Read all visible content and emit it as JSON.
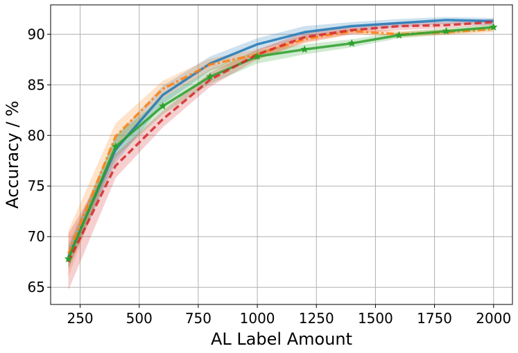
{
  "chart_data": {
    "type": "line",
    "title": "",
    "xlabel": "AL Label Amount",
    "ylabel": "Accuracy / %",
    "xlim": [
      125,
      2080
    ],
    "ylim": [
      63.3,
      92.9
    ],
    "xticks": [
      250,
      500,
      750,
      1000,
      1250,
      1500,
      1750,
      2000
    ],
    "yticks": [
      65,
      70,
      75,
      80,
      85,
      90
    ],
    "grid": true,
    "legend": "none",
    "series": [
      {
        "color": "#1f77b4",
        "linestyle": "solid",
        "marker": "none",
        "x": [
          200,
          400,
          600,
          800,
          1000,
          1200,
          1400,
          1600,
          1800,
          2000
        ],
        "y": [
          68.0,
          78.6,
          84.0,
          87.1,
          89.0,
          90.2,
          90.8,
          91.1,
          91.4,
          91.3
        ],
        "lower": [
          66.8,
          77.3,
          83.1,
          86.4,
          88.4,
          89.6,
          90.3,
          90.7,
          91.0,
          90.9
        ],
        "upper": [
          69.2,
          79.9,
          84.9,
          87.8,
          89.6,
          90.8,
          91.2,
          91.5,
          91.7,
          91.6
        ]
      },
      {
        "color": "#ff7f0e",
        "linestyle": "dashdot",
        "marker": "none",
        "x": [
          200,
          400,
          600,
          800,
          1000,
          1200,
          1400,
          1600,
          1800,
          2000
        ],
        "y": [
          68.3,
          79.9,
          84.6,
          87.0,
          88.0,
          89.5,
          90.3,
          90.0,
          90.2,
          90.5
        ],
        "lower": [
          66.0,
          78.6,
          83.7,
          86.4,
          87.5,
          89.1,
          90.0,
          89.7,
          89.9,
          90.2
        ],
        "upper": [
          70.6,
          81.2,
          85.4,
          87.6,
          88.5,
          89.9,
          90.6,
          90.3,
          90.5,
          90.8
        ]
      },
      {
        "color": "#2ca02c",
        "linestyle": "solid",
        "marker": "star",
        "x": [
          200,
          400,
          600,
          800,
          1000,
          1200,
          1400,
          1600,
          1800,
          2000
        ],
        "y": [
          67.8,
          78.9,
          82.9,
          85.8,
          87.8,
          88.5,
          89.1,
          89.9,
          90.3,
          90.7
        ],
        "lower": [
          66.9,
          77.8,
          82.1,
          85.1,
          87.1,
          88.0,
          88.7,
          89.6,
          90.0,
          90.4
        ],
        "upper": [
          68.8,
          80.0,
          83.7,
          86.5,
          88.4,
          89.0,
          89.5,
          90.2,
          90.6,
          91.0
        ]
      },
      {
        "color": "#d62728",
        "linestyle": "dashed",
        "marker": "none",
        "x": [
          200,
          400,
          600,
          800,
          1000,
          1200,
          1400,
          1600,
          1800,
          2000
        ],
        "y": [
          67.5,
          77.0,
          81.6,
          85.5,
          88.0,
          89.7,
          90.4,
          90.8,
          90.9,
          91.2
        ],
        "lower": [
          64.7,
          75.8,
          80.8,
          84.8,
          87.5,
          89.2,
          90.0,
          90.4,
          90.6,
          90.9
        ],
        "upper": [
          70.3,
          78.2,
          82.4,
          86.2,
          88.5,
          90.2,
          90.8,
          91.2,
          91.2,
          91.5
        ]
      }
    ]
  }
}
